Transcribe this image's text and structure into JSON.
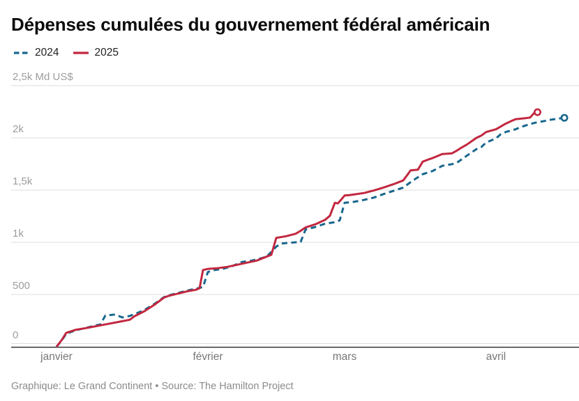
{
  "page": {
    "title": "Dépenses cumulées du gouvernement fédéral américain",
    "caption": "Graphique: Le Grand Continent • Source: The Hamilton Project"
  },
  "chart_data": {
    "type": "line",
    "title": "Dépenses cumulées du gouvernement fédéral américain",
    "unit": "Md US$",
    "source": "Graphique: Le Grand Continent • Source: The Hamilton Project",
    "ylim": [
      0,
      2500
    ],
    "grid": true,
    "legend_position": "top-left",
    "colors": {
      "grid": "#dedede",
      "axis": "#383838",
      "series_2024": "#17678c",
      "series_2025": "#c2273f"
    },
    "y_ticks": [
      {
        "value": 2500,
        "label": "2,5k Md US$"
      },
      {
        "value": 2000,
        "label": "2k"
      },
      {
        "value": 1500,
        "label": "1,5k"
      },
      {
        "value": 1000,
        "label": "1k"
      },
      {
        "value": 500,
        "label": "500"
      },
      {
        "value": 0,
        "label": "0"
      }
    ],
    "x_ticks": [
      {
        "day": 0,
        "label": "janvier"
      },
      {
        "day": 31,
        "label": "février"
      },
      {
        "day": 59,
        "label": "mars"
      },
      {
        "day": 90,
        "label": "avril"
      }
    ],
    "series": [
      {
        "name": "2024",
        "color": "#17678c",
        "style": "dashed",
        "points": [
          [
            0,
            0
          ],
          [
            1,
            55
          ],
          [
            2,
            125
          ],
          [
            4,
            158
          ],
          [
            6,
            180
          ],
          [
            9,
            215
          ],
          [
            10,
            298
          ],
          [
            12,
            308
          ],
          [
            13.5,
            280
          ],
          [
            15,
            295
          ],
          [
            16,
            312
          ],
          [
            18,
            352
          ],
          [
            20,
            408
          ],
          [
            22,
            474
          ],
          [
            23,
            492
          ],
          [
            25,
            516
          ],
          [
            27,
            540
          ],
          [
            29,
            560
          ],
          [
            30,
            572
          ],
          [
            31,
            715
          ],
          [
            32,
            732
          ],
          [
            34,
            745
          ],
          [
            36,
            772
          ],
          [
            38,
            812
          ],
          [
            40,
            825
          ],
          [
            42,
            848
          ],
          [
            43,
            862
          ],
          [
            44,
            908
          ],
          [
            45,
            958
          ],
          [
            46,
            988
          ],
          [
            48,
            996
          ],
          [
            50,
            1004
          ],
          [
            51,
            1122
          ],
          [
            53,
            1146
          ],
          [
            55,
            1178
          ],
          [
            57,
            1192
          ],
          [
            58,
            1210
          ],
          [
            59,
            1378
          ],
          [
            60,
            1382
          ],
          [
            61,
            1388
          ],
          [
            63,
            1406
          ],
          [
            65,
            1428
          ],
          [
            67,
            1462
          ],
          [
            69,
            1492
          ],
          [
            71,
            1524
          ],
          [
            73,
            1592
          ],
          [
            75,
            1652
          ],
          [
            77,
            1682
          ],
          [
            79,
            1732
          ],
          [
            81,
            1748
          ],
          [
            82,
            1762
          ],
          [
            84,
            1828
          ],
          [
            86,
            1892
          ],
          [
            87,
            1912
          ],
          [
            88,
            1956
          ],
          [
            90,
            1995
          ],
          [
            91,
            2036
          ],
          [
            92,
            2056
          ],
          [
            94,
            2082
          ],
          [
            95,
            2102
          ],
          [
            97,
            2132
          ],
          [
            98,
            2145
          ],
          [
            100,
            2162
          ],
          [
            101,
            2172
          ],
          [
            103,
            2186
          ],
          [
            104,
            2192
          ]
        ]
      },
      {
        "name": "2025",
        "color": "#c2273f",
        "style": "solid",
        "points": [
          [
            0,
            0
          ],
          [
            1,
            60
          ],
          [
            2,
            133
          ],
          [
            4,
            163
          ],
          [
            6,
            178
          ],
          [
            9,
            205
          ],
          [
            11,
            222
          ],
          [
            13,
            240
          ],
          [
            15,
            258
          ],
          [
            16,
            293
          ],
          [
            18,
            340
          ],
          [
            20,
            400
          ],
          [
            22,
            470
          ],
          [
            23,
            487
          ],
          [
            25,
            510
          ],
          [
            27,
            533
          ],
          [
            28.5,
            545
          ],
          [
            29.3,
            560
          ],
          [
            30,
            735
          ],
          [
            31,
            745
          ],
          [
            33,
            752
          ],
          [
            35,
            765
          ],
          [
            38,
            795
          ],
          [
            41,
            825
          ],
          [
            43,
            862
          ],
          [
            44,
            880
          ],
          [
            45,
            1042
          ],
          [
            47,
            1058
          ],
          [
            49,
            1082
          ],
          [
            50,
            1110
          ],
          [
            51,
            1142
          ],
          [
            53,
            1172
          ],
          [
            55,
            1215
          ],
          [
            56,
            1255
          ],
          [
            57,
            1378
          ],
          [
            57.6,
            1372
          ],
          [
            58.3,
            1408
          ],
          [
            59,
            1448
          ],
          [
            60,
            1452
          ],
          [
            61,
            1458
          ],
          [
            63,
            1472
          ],
          [
            65,
            1496
          ],
          [
            67,
            1525
          ],
          [
            69,
            1556
          ],
          [
            71,
            1592
          ],
          [
            72,
            1655
          ],
          [
            72.5,
            1688
          ],
          [
            74,
            1695
          ],
          [
            75,
            1772
          ],
          [
            76,
            1790
          ],
          [
            77,
            1806
          ],
          [
            79,
            1845
          ],
          [
            81,
            1852
          ],
          [
            82,
            1878
          ],
          [
            83,
            1908
          ],
          [
            84,
            1935
          ],
          [
            86,
            2000
          ],
          [
            87,
            2022
          ],
          [
            88,
            2056
          ],
          [
            90,
            2082
          ],
          [
            92,
            2136
          ],
          [
            93,
            2158
          ],
          [
            94,
            2178
          ],
          [
            96,
            2188
          ],
          [
            97,
            2195
          ],
          [
            97.8,
            2238
          ],
          [
            98.5,
            2246
          ]
        ]
      }
    ]
  }
}
